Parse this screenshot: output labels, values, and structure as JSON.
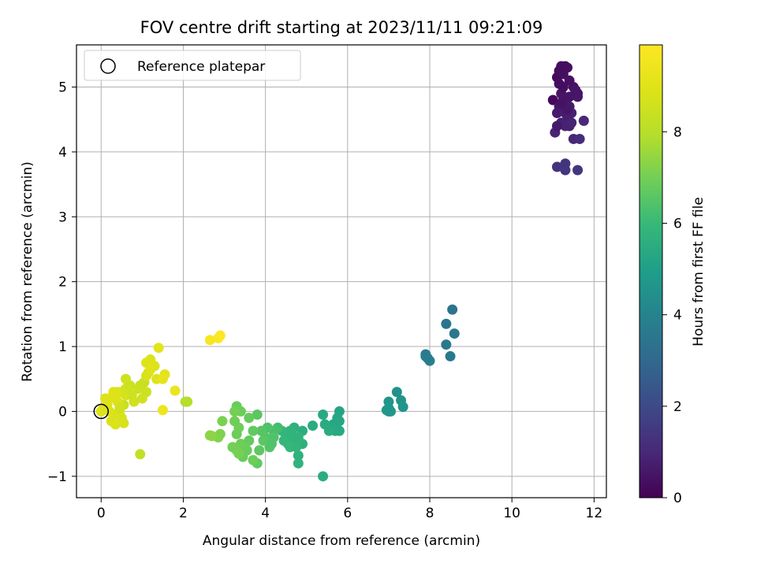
{
  "chart_data": {
    "type": "scatter",
    "title": "FOV centre drift starting at 2023/11/11 09:21:09",
    "xlabel": "Angular distance from reference (arcmin)",
    "ylabel": "Rotation from reference (arcmin)",
    "xlim": [
      -0.6,
      12.3
    ],
    "ylim": [
      -1.33,
      5.65
    ],
    "xticks": [
      0,
      2,
      4,
      6,
      8,
      10,
      12
    ],
    "yticks": [
      -1,
      0,
      1,
      2,
      3,
      4,
      5
    ],
    "grid": true,
    "legend": {
      "position": "top-left",
      "entries": [
        "Reference platepar"
      ]
    },
    "reference_point": {
      "x": 0,
      "y": 0,
      "label": "Reference platepar"
    },
    "colorbar": {
      "label": "Hours from first FF file",
      "colormap": "viridis",
      "range": [
        0,
        9.9
      ],
      "ticks": [
        0,
        2,
        4,
        6,
        8
      ]
    },
    "points": [
      [
        11.0,
        4.8,
        0.2
      ],
      [
        11.1,
        5.15,
        0.2
      ],
      [
        11.15,
        5.25,
        0.25
      ],
      [
        11.2,
        5.32,
        0.3
      ],
      [
        11.3,
        5.32,
        0.3
      ],
      [
        11.35,
        5.3,
        0.35
      ],
      [
        11.25,
        5.2,
        0.35
      ],
      [
        11.4,
        5.1,
        0.4
      ],
      [
        11.5,
        5.0,
        0.4
      ],
      [
        11.55,
        4.95,
        0.45
      ],
      [
        11.6,
        4.9,
        0.45
      ],
      [
        11.2,
        4.9,
        0.5
      ],
      [
        11.25,
        4.85,
        0.5
      ],
      [
        11.3,
        4.75,
        0.55
      ],
      [
        11.4,
        4.7,
        0.6
      ],
      [
        11.15,
        4.7,
        0.6
      ],
      [
        11.1,
        4.6,
        0.65
      ],
      [
        11.3,
        4.6,
        0.7
      ],
      [
        11.35,
        4.5,
        0.7
      ],
      [
        11.4,
        4.4,
        0.75
      ],
      [
        11.2,
        4.45,
        0.8
      ],
      [
        11.3,
        4.4,
        0.85
      ],
      [
        11.05,
        4.3,
        0.9
      ],
      [
        11.25,
        5.0,
        0.35
      ],
      [
        11.15,
        5.05,
        0.3
      ],
      [
        11.45,
        4.45,
        0.9
      ],
      [
        11.5,
        4.2,
        1.0
      ],
      [
        11.65,
        4.2,
        1.1
      ],
      [
        11.75,
        4.48,
        1.0
      ],
      [
        11.55,
        4.95,
        0.5
      ],
      [
        11.45,
        4.6,
        0.8
      ],
      [
        11.1,
        3.77,
        1.3
      ],
      [
        11.3,
        3.72,
        1.4
      ],
      [
        11.3,
        3.82,
        1.35
      ],
      [
        11.6,
        3.72,
        1.4
      ],
      [
        11.1,
        4.4,
        0.6
      ],
      [
        11.35,
        4.65,
        0.55
      ],
      [
        11.2,
        4.75,
        0.45
      ],
      [
        11.4,
        4.85,
        0.5
      ],
      [
        11.6,
        4.85,
        0.55
      ],
      [
        8.55,
        1.57,
        3.4
      ],
      [
        8.4,
        1.35,
        3.5
      ],
      [
        8.6,
        1.2,
        3.55
      ],
      [
        8.4,
        1.03,
        3.6
      ],
      [
        8.5,
        0.85,
        3.65
      ],
      [
        7.9,
        0.88,
        3.7
      ],
      [
        7.95,
        0.82,
        3.75
      ],
      [
        8.0,
        0.78,
        3.8
      ],
      [
        7.9,
        0.85,
        3.72
      ],
      [
        7.2,
        0.3,
        4.5
      ],
      [
        7.3,
        0.17,
        4.55
      ],
      [
        7.35,
        0.07,
        4.6
      ],
      [
        7.0,
        0.15,
        4.6
      ],
      [
        7.0,
        0.05,
        4.65
      ],
      [
        7.05,
        0.0,
        4.7
      ],
      [
        7.0,
        0.0,
        4.75
      ],
      [
        6.95,
        0.02,
        4.72
      ],
      [
        5.8,
        0.0,
        5.2
      ],
      [
        5.75,
        -0.1,
        5.25
      ],
      [
        5.8,
        -0.15,
        5.3
      ],
      [
        5.65,
        -0.2,
        5.3
      ],
      [
        5.7,
        -0.3,
        5.35
      ],
      [
        5.8,
        -0.3,
        5.4
      ],
      [
        5.4,
        -0.05,
        5.4
      ],
      [
        5.45,
        -0.2,
        5.45
      ],
      [
        5.55,
        -0.3,
        5.5
      ],
      [
        5.15,
        -0.22,
        5.5
      ],
      [
        5.4,
        -1.0,
        5.55
      ],
      [
        4.9,
        -0.3,
        5.6
      ],
      [
        4.9,
        -0.5,
        5.65
      ],
      [
        4.8,
        -0.68,
        5.7
      ],
      [
        4.8,
        -0.8,
        5.75
      ],
      [
        4.7,
        -0.25,
        5.65
      ],
      [
        4.65,
        -0.35,
        5.7
      ],
      [
        4.55,
        -0.5,
        5.75
      ],
      [
        4.7,
        -0.45,
        5.8
      ],
      [
        4.6,
        -0.3,
        5.8
      ],
      [
        4.5,
        -0.4,
        5.85
      ],
      [
        4.4,
        -0.3,
        5.9
      ],
      [
        4.45,
        -0.45,
        5.9
      ],
      [
        4.6,
        -0.55,
        5.95
      ],
      [
        4.8,
        -0.4,
        5.8
      ],
      [
        4.75,
        -0.55,
        5.85
      ],
      [
        4.3,
        -0.25,
        6.2
      ],
      [
        4.2,
        -0.3,
        6.3
      ],
      [
        4.05,
        -0.25,
        6.4
      ],
      [
        4.0,
        -0.4,
        6.5
      ],
      [
        4.1,
        -0.55,
        6.5
      ],
      [
        3.9,
        -0.3,
        6.55
      ],
      [
        3.95,
        -0.45,
        6.6
      ],
      [
        3.85,
        -0.6,
        6.65
      ],
      [
        3.8,
        -0.8,
        6.7
      ],
      [
        3.8,
        -0.05,
        6.6
      ],
      [
        3.7,
        -0.3,
        6.7
      ],
      [
        3.6,
        -0.45,
        6.75
      ],
      [
        3.55,
        -0.6,
        6.8
      ],
      [
        3.45,
        -0.7,
        6.85
      ],
      [
        3.5,
        -0.55,
        6.85
      ],
      [
        3.4,
        -0.5,
        6.9
      ],
      [
        3.3,
        -0.35,
        6.9
      ],
      [
        3.35,
        -0.25,
        6.95
      ],
      [
        3.25,
        -0.15,
        6.95
      ],
      [
        3.3,
        -0.6,
        7.0
      ],
      [
        3.2,
        -0.55,
        7.0
      ],
      [
        3.3,
        0.08,
        6.85
      ],
      [
        3.4,
        0.0,
        6.9
      ],
      [
        3.25,
        0.0,
        7.0
      ],
      [
        3.6,
        -0.1,
        6.8
      ],
      [
        3.7,
        -0.75,
        6.9
      ],
      [
        2.95,
        -0.15,
        7.1
      ],
      [
        2.9,
        -0.35,
        7.15
      ],
      [
        2.85,
        -0.4,
        7.2
      ],
      [
        2.7,
        -0.38,
        7.3
      ],
      [
        2.65,
        -0.37,
        7.35
      ],
      [
        3.35,
        -0.65,
        7.05
      ],
      [
        4.2,
        -0.4,
        6.4
      ],
      [
        4.15,
        -0.5,
        6.45
      ],
      [
        2.1,
        0.15,
        7.9
      ],
      [
        2.05,
        0.15,
        7.95
      ],
      [
        0.95,
        -0.66,
        8.3
      ],
      [
        0.55,
        0.1,
        8.4
      ],
      [
        0.5,
        0.3,
        8.5
      ],
      [
        0.6,
        0.5,
        8.6
      ],
      [
        0.45,
        0.0,
        8.7
      ],
      [
        0.5,
        -0.1,
        8.7
      ],
      [
        0.55,
        -0.18,
        8.75
      ],
      [
        0.3,
        -0.05,
        8.8
      ],
      [
        0.25,
        -0.15,
        8.8
      ],
      [
        0.35,
        -0.2,
        8.85
      ],
      [
        0.4,
        0.15,
        8.8
      ],
      [
        0.2,
        0.2,
        8.9
      ],
      [
        0.1,
        0.2,
        8.9
      ],
      [
        0.05,
        0.05,
        8.95
      ],
      [
        0.15,
        0.1,
        8.95
      ],
      [
        0.2,
        0.0,
        8.9
      ],
      [
        0.35,
        0.2,
        8.9
      ],
      [
        0.4,
        0.3,
        8.85
      ],
      [
        0.3,
        0.3,
        8.9
      ],
      [
        0.6,
        0.25,
        8.75
      ],
      [
        0.6,
        0.35,
        8.65
      ],
      [
        0.8,
        0.15,
        8.6
      ],
      [
        0.75,
        0.25,
        8.55
      ],
      [
        0.9,
        0.35,
        8.5
      ],
      [
        0.95,
        0.4,
        8.45
      ],
      [
        1.05,
        0.45,
        8.4
      ],
      [
        1.1,
        0.3,
        8.5
      ],
      [
        1.15,
        0.6,
        8.7
      ],
      [
        1.1,
        0.55,
        8.8
      ],
      [
        1.3,
        0.7,
        8.85
      ],
      [
        1.2,
        0.8,
        8.9
      ],
      [
        1.1,
        0.75,
        8.95
      ],
      [
        1.2,
        0.65,
        9.0
      ],
      [
        1.4,
        0.98,
        9.1
      ],
      [
        1.35,
        0.5,
        9.0
      ],
      [
        1.55,
        0.57,
        9.1
      ],
      [
        1.5,
        0.5,
        9.2
      ],
      [
        1.8,
        0.32,
        9.3
      ],
      [
        1.5,
        0.02,
        9.4
      ],
      [
        2.65,
        1.1,
        9.7
      ],
      [
        2.85,
        1.13,
        9.8
      ],
      [
        2.9,
        1.17,
        9.85
      ],
      [
        0.0,
        0.0,
        8.95
      ],
      [
        0.45,
        0.05,
        8.6
      ],
      [
        0.7,
        0.4,
        8.5
      ],
      [
        1.0,
        0.2,
        8.6
      ]
    ]
  }
}
